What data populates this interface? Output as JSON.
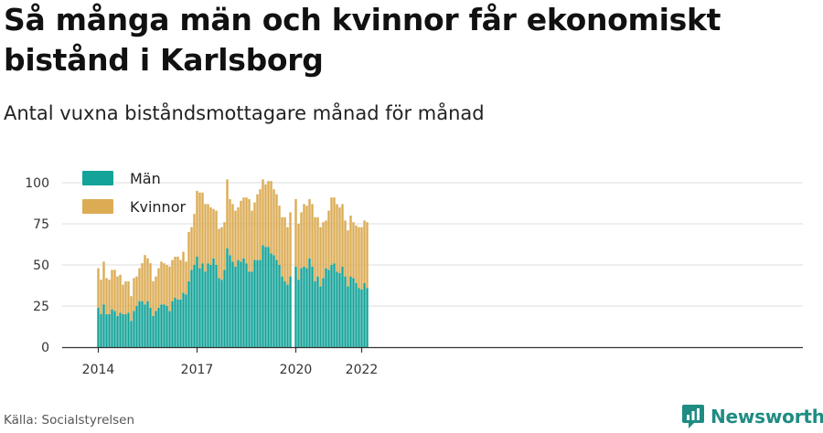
{
  "title": "Så många män och kvinnor får ekonomiskt bistånd i Karlsborg",
  "subtitle": "Antal vuxna biståndsmottagare månad för månad",
  "source": "Källa: Socialstyrelsen",
  "brand": {
    "name": "Newsworthy",
    "icon": "newsworthy-logo-icon"
  },
  "colors": {
    "men": "#14a398",
    "women": "#dcac55",
    "grid": "#dddddd",
    "axis": "#333333"
  },
  "chart_data": {
    "type": "bar",
    "stacked": true,
    "xlabel": "",
    "ylabel": "",
    "ylim": [
      0,
      105
    ],
    "yticks": [
      0,
      25,
      50,
      75,
      100
    ],
    "xtick_labels": [
      {
        "label": "2014",
        "month": "2014-01"
      },
      {
        "label": "2017",
        "month": "2017-01"
      },
      {
        "label": "2020",
        "month": "2020-01"
      },
      {
        "label": "2022",
        "month": "2022-01"
      }
    ],
    "x_start": "2014-01",
    "grid": true,
    "legend": "top-left",
    "series": [
      {
        "name": "Män",
        "values": [
          24,
          20,
          26,
          20,
          20,
          23,
          22,
          19,
          21,
          20,
          20,
          21,
          16,
          22,
          25,
          28,
          28,
          26,
          28,
          24,
          19,
          22,
          24,
          26,
          26,
          25,
          22,
          28,
          30,
          29,
          29,
          33,
          32,
          40,
          47,
          50,
          55,
          48,
          51,
          46,
          51,
          50,
          54,
          50,
          42,
          41,
          47,
          60,
          56,
          52,
          49,
          53,
          52,
          54,
          51,
          46,
          46,
          53,
          53,
          53,
          62,
          61,
          61,
          57,
          56,
          53,
          50,
          43,
          40,
          38,
          43,
          null,
          49,
          41,
          48,
          49,
          48,
          54,
          49,
          40,
          43,
          37,
          42,
          48,
          47,
          50,
          51,
          46,
          45,
          49,
          43,
          37,
          43,
          42,
          39,
          36,
          35,
          39,
          36
        ],
        "color_key": "men"
      },
      {
        "name": "Kvinnor",
        "values": [
          24,
          21,
          26,
          22,
          21,
          24,
          25,
          24,
          23,
          18,
          20,
          19,
          15,
          20,
          18,
          20,
          23,
          30,
          26,
          27,
          21,
          21,
          24,
          26,
          25,
          25,
          27,
          25,
          25,
          26,
          24,
          25,
          20,
          30,
          26,
          31,
          40,
          46,
          43,
          41,
          36,
          35,
          30,
          33,
          30,
          32,
          29,
          42,
          34,
          35,
          34,
          32,
          37,
          37,
          40,
          44,
          37,
          35,
          40,
          43,
          40,
          38,
          40,
          44,
          40,
          40,
          36,
          36,
          39,
          35,
          39,
          null,
          41,
          34,
          34,
          38,
          38,
          36,
          38,
          39,
          36,
          36,
          34,
          29,
          36,
          41,
          40,
          41,
          40,
          38,
          34,
          34,
          37,
          34,
          35,
          37,
          38,
          38,
          40
        ],
        "color_key": "women"
      }
    ]
  }
}
